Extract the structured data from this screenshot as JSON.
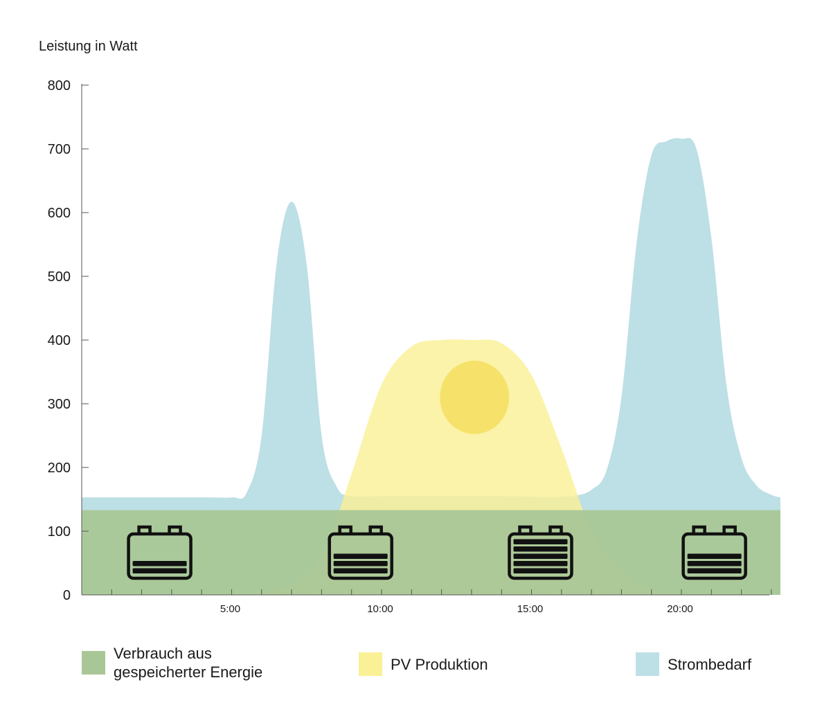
{
  "chart_data": {
    "type": "area",
    "ylabel": "Leistung in Watt",
    "xlabel": "",
    "ylim": [
      0,
      800
    ],
    "xlim": [
      0,
      24
    ],
    "yticks": [
      {
        "value": 0,
        "label": "0"
      },
      {
        "value": 100,
        "label": "100"
      },
      {
        "value": 200,
        "label": "200"
      },
      {
        "value": 300,
        "label": "300"
      },
      {
        "value": 400,
        "label": "400"
      },
      {
        "value": 500,
        "label": "500"
      },
      {
        "value": 600,
        "label": "600"
      },
      {
        "value": 700,
        "label": "700"
      },
      {
        "value": 800,
        "label": "800"
      }
    ],
    "xticks": [
      {
        "value": 5,
        "label": "5:00"
      },
      {
        "value": 10,
        "label": "10:00"
      },
      {
        "value": 15,
        "label": "15:00"
      },
      {
        "value": 20,
        "label": "20:00"
      }
    ],
    "grid": false,
    "legend_position": "bottom",
    "series": [
      {
        "name": "Strombedarf",
        "color": "#bddfe6",
        "x": [
          0,
          4,
          5,
          5.5,
          6,
          6.5,
          7,
          7.5,
          8,
          8.5,
          9,
          10,
          12,
          14,
          15,
          16,
          16.5,
          17,
          17.5,
          18,
          18.5,
          19,
          19.5,
          20,
          20.5,
          21,
          21.5,
          22,
          22.5,
          23,
          23.3
        ],
        "y": [
          153,
          153,
          153,
          160,
          250,
          520,
          617,
          520,
          250,
          170,
          155,
          155,
          155,
          155,
          154,
          154,
          156,
          165,
          195,
          310,
          550,
          690,
          712,
          716,
          700,
          560,
          330,
          215,
          172,
          157,
          153
        ]
      },
      {
        "name": "PV Produktion",
        "color": "#faf096",
        "x": [
          5,
          6,
          7,
          8,
          9,
          10,
          11,
          12,
          13,
          14,
          15,
          16,
          17,
          18,
          19,
          20
        ],
        "y": [
          0,
          3,
          15,
          60,
          190,
          330,
          390,
          400,
          400,
          395,
          345,
          230,
          100,
          35,
          8,
          0
        ]
      },
      {
        "name": "Verbrauch aus\ngespeicherter Energie",
        "color": "#a9c796",
        "x": [
          0,
          23.3
        ],
        "y": [
          133,
          133
        ]
      }
    ],
    "annotations": {
      "sun": {
        "x": 13.1,
        "y": 310,
        "color": "#f6e26a"
      },
      "batteries": [
        {
          "x": 2.6,
          "level": 2,
          "name": "battery-low-icon"
        },
        {
          "x": 9.3,
          "level": 3,
          "name": "battery-medium-icon"
        },
        {
          "x": 15.3,
          "level": 5,
          "name": "battery-full-icon"
        },
        {
          "x": 21.1,
          "level": 3,
          "name": "battery-medium-icon"
        }
      ]
    }
  }
}
